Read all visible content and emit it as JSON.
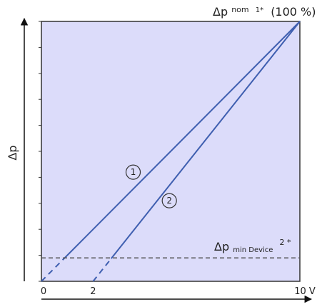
{
  "chart_data": {
    "type": "line",
    "title": "",
    "xlabel": "",
    "ylabel": "Δp",
    "xlim": [
      0,
      10
    ],
    "ylim": [
      0,
      100
    ],
    "x_ticks": [
      {
        "value": 0,
        "label": "0"
      },
      {
        "value": 2,
        "label": "2"
      },
      {
        "value": 10,
        "label": "10 V"
      }
    ],
    "grid": false,
    "series": [
      {
        "name": "1",
        "color": "#3f5fb0",
        "points": [
          {
            "x": 0,
            "y": 0
          },
          {
            "x": 10,
            "y": 100
          }
        ],
        "dashed_until_x": 0.9,
        "label_at": {
          "x": 3.55,
          "y": 42
        }
      },
      {
        "name": "2",
        "color": "#3f5fb0",
        "points": [
          {
            "x": 2,
            "y": 0
          },
          {
            "x": 10,
            "y": 100
          }
        ],
        "dashed_until_x": 2.7,
        "label_at": {
          "x": 4.95,
          "y": 31
        }
      }
    ],
    "reference_lines": [
      {
        "axis": "y",
        "value": 9,
        "style": "dashed",
        "color": "#555555"
      }
    ],
    "annotations": {
      "top_right": {
        "main": "Δp",
        "superscript": "nom",
        "subscript": "1*",
        "suffix": "(100 %)"
      },
      "min_device": {
        "main": "Δp",
        "subscript": "min Device",
        "superscript": "2 *"
      }
    },
    "background_color": "#dcdcfa",
    "frame_color": "#333333"
  }
}
